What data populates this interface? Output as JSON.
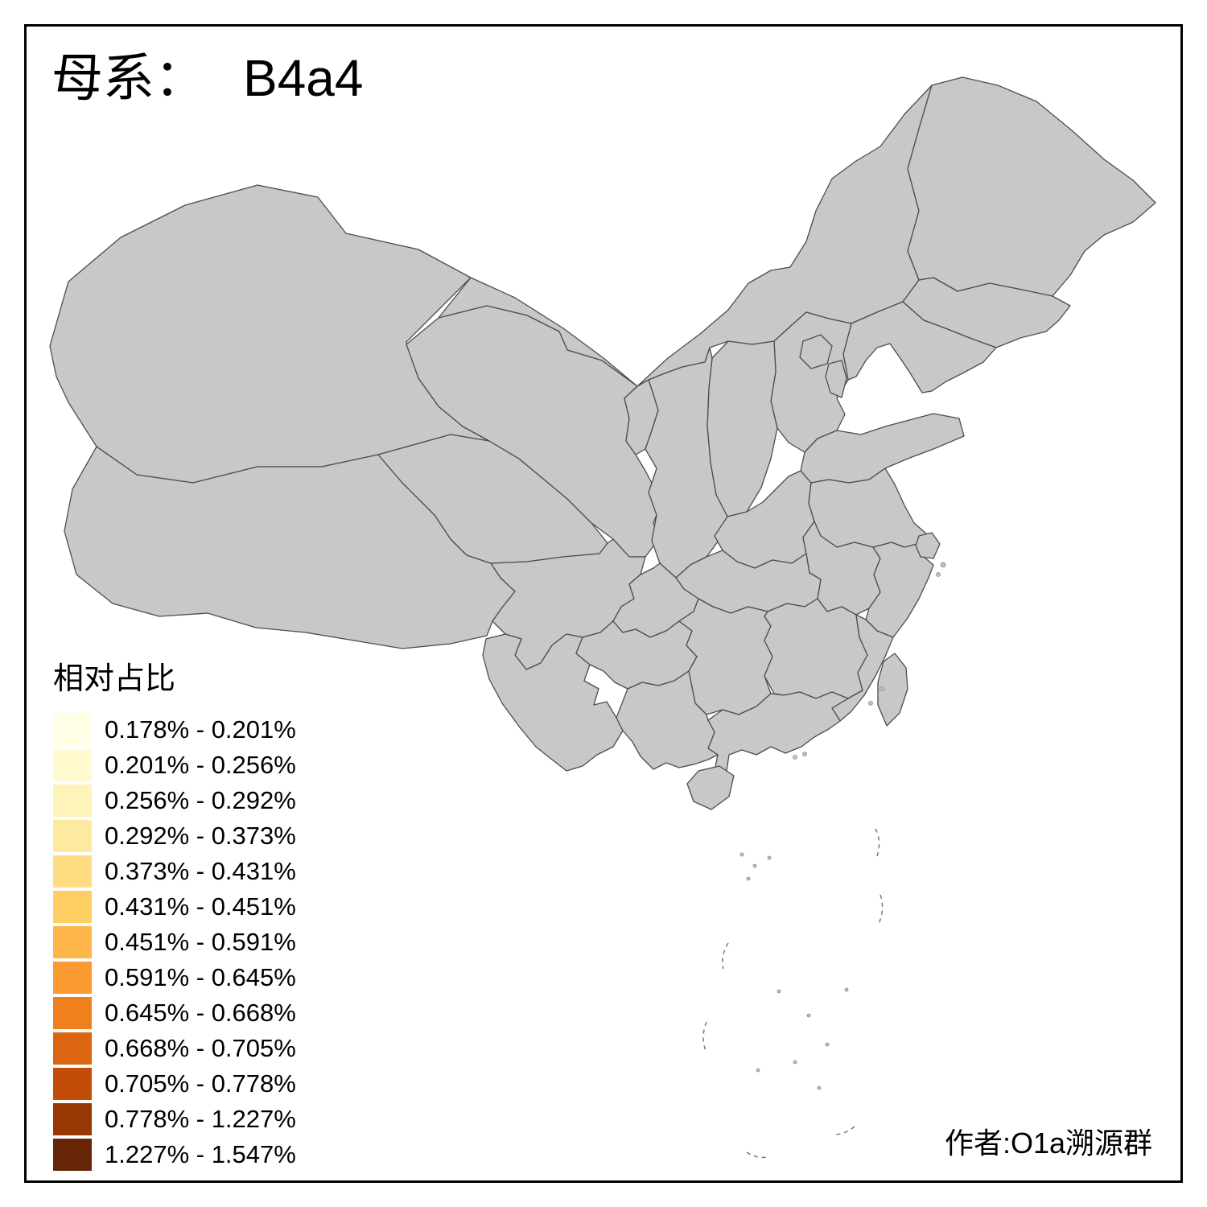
{
  "title": {
    "prefix": "母系：",
    "haplogroup": "B4a4"
  },
  "legend": {
    "title": "相对占比",
    "bins": [
      {
        "label": "0.178% - 0.201%",
        "color": "#FFFFE5"
      },
      {
        "label": "0.201% - 0.256%",
        "color": "#FFFBCF"
      },
      {
        "label": "0.256% - 0.292%",
        "color": "#FEF3B9"
      },
      {
        "label": "0.292% - 0.373%",
        "color": "#FEE9A1"
      },
      {
        "label": "0.373% - 0.431%",
        "color": "#FEDD82"
      },
      {
        "label": "0.431% - 0.451%",
        "color": "#FECE62"
      },
      {
        "label": "0.451% - 0.591%",
        "color": "#FEB54A"
      },
      {
        "label": "0.591% - 0.645%",
        "color": "#FB9A30"
      },
      {
        "label": "0.645% - 0.668%",
        "color": "#F07F1D"
      },
      {
        "label": "0.668% - 0.705%",
        "color": "#DC6512"
      },
      {
        "label": "0.705% - 0.778%",
        "color": "#C34D08"
      },
      {
        "label": "0.778% - 1.227%",
        "color": "#963704"
      },
      {
        "label": "1.227% - 1.547%",
        "color": "#662506"
      }
    ]
  },
  "author": "作者:O1a溯源群",
  "map": {
    "no_data_color": "#C8C8C8",
    "border_color": "#4D4D4D",
    "regions": [
      {
        "id": "xinjiang",
        "bin": null
      },
      {
        "id": "xizang",
        "bin": null
      },
      {
        "id": "qinghai",
        "bin": null
      },
      {
        "id": "neimenggu",
        "bin": null
      },
      {
        "id": "jilin",
        "bin": null
      },
      {
        "id": "hainan",
        "bin": null
      },
      {
        "id": "taiwan",
        "bin": null
      },
      {
        "id": "heilongjiang",
        "bin": 2
      },
      {
        "id": "liaoning",
        "bin": 8
      },
      {
        "id": "beijing",
        "bin": 9
      },
      {
        "id": "tianjin",
        "bin": 3
      },
      {
        "id": "hebei",
        "bin": 8
      },
      {
        "id": "shanxi",
        "bin": 12
      },
      {
        "id": "shandong",
        "bin": 10
      },
      {
        "id": "henan",
        "bin": 8
      },
      {
        "id": "shaanxi",
        "bin": 1
      },
      {
        "id": "ningxia",
        "bin": 8
      },
      {
        "id": "gansu",
        "bin": 8
      },
      {
        "id": "sichuan",
        "bin": 6
      },
      {
        "id": "chongqing",
        "bin": 8
      },
      {
        "id": "hubei",
        "bin": 11
      },
      {
        "id": "anhui",
        "bin": 8
      },
      {
        "id": "jiangsu",
        "bin": 8
      },
      {
        "id": "shanghai",
        "bin": 13
      },
      {
        "id": "zhejiang",
        "bin": 6
      },
      {
        "id": "jiangxi",
        "bin": 1
      },
      {
        "id": "hunan",
        "bin": 6
      },
      {
        "id": "guizhou",
        "bin": 7
      },
      {
        "id": "fujian",
        "bin": 8
      },
      {
        "id": "guangdong",
        "bin": 2
      },
      {
        "id": "guangxi",
        "bin": 5
      },
      {
        "id": "yunnan",
        "bin": 5
      }
    ]
  }
}
